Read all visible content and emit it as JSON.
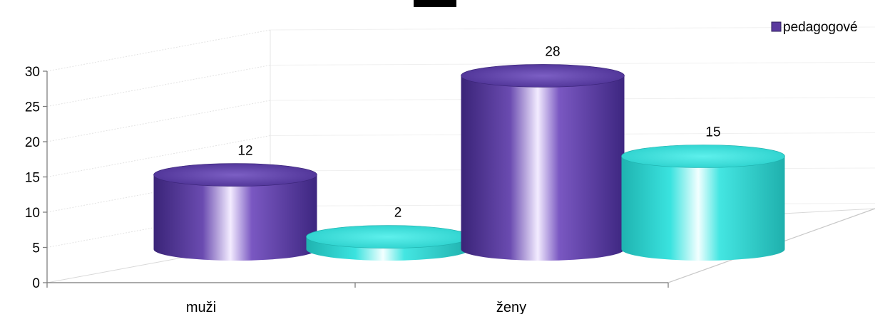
{
  "chart_data": {
    "type": "bar",
    "style": "3d-cylinder",
    "categories": [
      "muži",
      "ženy"
    ],
    "series": [
      {
        "name": "pedagogové",
        "values": [
          12,
          28
        ],
        "color": "#5b3a9e"
      },
      {
        "name": "",
        "values": [
          2,
          15
        ],
        "color": "#35e0dc"
      }
    ],
    "ylim": [
      0,
      30
    ],
    "yticks": [
      0,
      5,
      10,
      15,
      20,
      25,
      30
    ],
    "grid": true,
    "legend": "top-right"
  }
}
